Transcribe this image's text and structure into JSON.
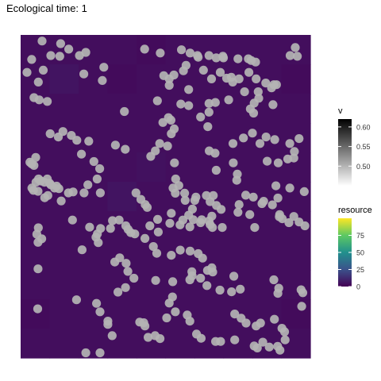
{
  "title": "Ecological time: 1",
  "chart_data": {
    "type": "scatter",
    "title": "Ecological time: 1",
    "xlabel": "",
    "ylabel": "",
    "xlim": [
      0,
      100
    ],
    "ylim": [
      0,
      100
    ],
    "grid": false,
    "background": {
      "name": "resource",
      "cols": 10,
      "rows": 11,
      "values": [
        [
          4,
          4,
          4,
          4,
          3,
          4,
          4,
          4,
          4,
          4
        ],
        [
          4,
          6,
          4,
          3,
          4,
          4,
          4,
          4,
          4,
          3
        ],
        [
          4,
          4,
          4,
          4,
          4,
          4,
          4,
          4,
          4,
          4
        ],
        [
          4,
          4,
          4,
          4,
          4,
          4,
          4,
          4,
          4,
          4
        ],
        [
          4,
          4,
          4,
          4,
          5,
          4,
          4,
          4,
          4,
          4
        ],
        [
          4,
          4,
          4,
          6,
          4,
          4,
          4,
          4,
          4,
          4
        ],
        [
          4,
          4,
          4,
          4,
          4,
          4,
          4,
          4,
          4,
          4
        ],
        [
          4,
          4,
          4,
          4,
          4,
          4,
          4,
          4,
          4,
          4
        ],
        [
          4,
          4,
          4,
          4,
          4,
          4,
          4,
          4,
          4,
          4
        ],
        [
          3,
          4,
          4,
          4,
          4,
          4,
          4,
          4,
          4,
          3
        ],
        [
          4,
          4,
          4,
          4,
          4,
          4,
          4,
          4,
          4,
          4
        ]
      ]
    },
    "points_color": "v",
    "points_color_value": 0.5,
    "points": [
      [
        7.4,
        98.1
      ],
      [
        13.8,
        97.3
      ],
      [
        16.6,
        95.6
      ],
      [
        20.3,
        93.6
      ],
      [
        22.5,
        94.6
      ],
      [
        10.4,
        93.6
      ],
      [
        13.5,
        93.4
      ],
      [
        3.8,
        92.4
      ],
      [
        7.8,
        89.1
      ],
      [
        2.2,
        88.4
      ],
      [
        21.8,
        87.9
      ],
      [
        28.7,
        90.0
      ],
      [
        42.8,
        95.6
      ],
      [
        55.5,
        95.4
      ],
      [
        48.2,
        94.4
      ],
      [
        58.5,
        94.4
      ],
      [
        61.0,
        93.6
      ],
      [
        61.3,
        93.1
      ],
      [
        65.0,
        93.6
      ],
      [
        67.5,
        92.9
      ],
      [
        70.0,
        92.9
      ],
      [
        69.8,
        93.4
      ],
      [
        75.0,
        92.6
      ],
      [
        79.6,
        92.1
      ],
      [
        78.6,
        92.6
      ],
      [
        81.1,
        91.6
      ],
      [
        93.0,
        93.6
      ],
      [
        95.5,
        93.4
      ],
      [
        94.8,
        96.1
      ],
      [
        57.1,
        90.6
      ],
      [
        56.2,
        88.9
      ],
      [
        52.9,
        87.6
      ],
      [
        49.4,
        87.4
      ],
      [
        51.3,
        86.4
      ],
      [
        63.1,
        89.1
      ],
      [
        68.9,
        88.4
      ],
      [
        72.7,
        86.9
      ],
      [
        71.1,
        86.6
      ],
      [
        78.8,
        88.4
      ],
      [
        81.3,
        86.4
      ],
      [
        84.6,
        85.1
      ],
      [
        87.4,
        84.6
      ],
      [
        88.3,
        84.6
      ],
      [
        86.6,
        83.6
      ],
      [
        6.1,
        85.4
      ],
      [
        28.2,
        85.9
      ],
      [
        51.3,
        84.4
      ],
      [
        58.0,
        83.1
      ],
      [
        65.9,
        86.4
      ],
      [
        75.4,
        86.4
      ],
      [
        73.2,
        85.4
      ],
      [
        77.3,
        82.4
      ],
      [
        82.0,
        82.4
      ],
      [
        6.4,
        79.9
      ],
      [
        9.2,
        79.4
      ],
      [
        4.6,
        80.6
      ],
      [
        35.8,
        76.3
      ],
      [
        47.2,
        79.6
      ],
      [
        55.3,
        78.6
      ],
      [
        58.0,
        78.1
      ],
      [
        65.0,
        78.8
      ],
      [
        67.2,
        79.1
      ],
      [
        71.8,
        79.9
      ],
      [
        80.6,
        78.9
      ],
      [
        82.2,
        80.4
      ],
      [
        87.1,
        78.4
      ],
      [
        79.3,
        77.1
      ],
      [
        80.4,
        75.8
      ],
      [
        65.0,
        76.1
      ],
      [
        62.1,
        74.6
      ],
      [
        64.6,
        71.6
      ],
      [
        51.0,
        74.4
      ],
      [
        49.1,
        72.9
      ],
      [
        51.9,
        73.6
      ],
      [
        53.0,
        70.9
      ],
      [
        52.0,
        69.4
      ],
      [
        10.2,
        69.4
      ],
      [
        13.0,
        68.4
      ],
      [
        17.5,
        68.9
      ],
      [
        14.6,
        70.1
      ],
      [
        19.4,
        67.4
      ],
      [
        23.5,
        67.1
      ],
      [
        32.7,
        65.9
      ],
      [
        36.1,
        64.6
      ],
      [
        48.0,
        66.4
      ],
      [
        50.7,
        65.6
      ],
      [
        46.5,
        64.1
      ],
      [
        44.9,
        62.4
      ],
      [
        53.1,
        60.4
      ],
      [
        65.1,
        64.1
      ],
      [
        67.1,
        63.4
      ],
      [
        73.3,
        66.4
      ],
      [
        76.9,
        68.1
      ],
      [
        80.0,
        69.6
      ],
      [
        84.7,
        68.4
      ],
      [
        82.6,
        66.4
      ],
      [
        87.7,
        67.6
      ],
      [
        92.9,
        66.4
      ],
      [
        96.1,
        67.9
      ],
      [
        94.5,
        63.9
      ],
      [
        85.1,
        60.9
      ],
      [
        88.9,
        60.4
      ],
      [
        92.2,
        61.6
      ],
      [
        94.3,
        61.9
      ],
      [
        73.4,
        60.4
      ],
      [
        74.8,
        56.9
      ],
      [
        67.5,
        58.1
      ],
      [
        52.6,
        52.6
      ],
      [
        5.2,
        62.1
      ],
      [
        3.2,
        60.6
      ],
      [
        21.0,
        63.1
      ],
      [
        25.3,
        60.8
      ],
      [
        27.3,
        58.6
      ],
      [
        26.4,
        55.4
      ],
      [
        3.8,
        60.1
      ],
      [
        4.6,
        59.6
      ],
      [
        5.3,
        54.4
      ],
      [
        6.2,
        55.4
      ],
      [
        7.0,
        54.8
      ],
      [
        8.2,
        54.4
      ],
      [
        9.2,
        55.4
      ],
      [
        10.0,
        54.1
      ],
      [
        10.4,
        53.6
      ],
      [
        11.7,
        52.6
      ],
      [
        12.4,
        53.2
      ],
      [
        3.9,
        52.6
      ],
      [
        4.4,
        51.9
      ],
      [
        6.0,
        51.6
      ],
      [
        16.5,
        51.1
      ],
      [
        18.1,
        51.4
      ],
      [
        13.2,
        52.4
      ],
      [
        14.0,
        48.6
      ],
      [
        8.3,
        49.6
      ],
      [
        9.4,
        50.3
      ],
      [
        23.2,
        53.6
      ],
      [
        21.9,
        51.1
      ],
      [
        27.5,
        51.1
      ],
      [
        39.8,
        51.1
      ],
      [
        41.5,
        49.1
      ],
      [
        43.0,
        47.5
      ],
      [
        43.7,
        46.6
      ],
      [
        53.5,
        55.4
      ],
      [
        54.6,
        53.4
      ],
      [
        53.4,
        51.0
      ],
      [
        56.6,
        51.0
      ],
      [
        56.8,
        48.8
      ],
      [
        59.3,
        46.1
      ],
      [
        60.1,
        48.8
      ],
      [
        60.5,
        49.8
      ],
      [
        64.1,
        50.3
      ],
      [
        66.5,
        50.3
      ],
      [
        65.4,
        48.4
      ],
      [
        67.6,
        47.2
      ],
      [
        69.2,
        46.0
      ],
      [
        74.6,
        55.0
      ],
      [
        88.1,
        53.3
      ],
      [
        88.8,
        49.5
      ],
      [
        92.9,
        52.6
      ],
      [
        97.9,
        51.5
      ],
      [
        77.7,
        50.4
      ],
      [
        80.3,
        49.8
      ],
      [
        83.3,
        47.8
      ],
      [
        83.9,
        48.5
      ],
      [
        75.4,
        47.5
      ],
      [
        75.0,
        45.1
      ],
      [
        79.1,
        44.4
      ],
      [
        86.9,
        47.4
      ],
      [
        89.3,
        43.7
      ],
      [
        89.4,
        44.4
      ],
      [
        90.3,
        43.1
      ],
      [
        92.6,
        41.9
      ],
      [
        94.3,
        43.8
      ],
      [
        96.1,
        42.1
      ],
      [
        98.1,
        40.9
      ],
      [
        80.8,
        40.4
      ],
      [
        6.1,
        40.3
      ],
      [
        5.6,
        38.3
      ],
      [
        7.3,
        36.9
      ],
      [
        6.0,
        35.8
      ],
      [
        17.9,
        42.7
      ],
      [
        23.8,
        40.5
      ],
      [
        31.7,
        42.5
      ],
      [
        31.0,
        40.1
      ],
      [
        26.8,
        35.7
      ],
      [
        34.0,
        42.7
      ],
      [
        36.3,
        40.9
      ],
      [
        37.1,
        39.8
      ],
      [
        38.0,
        38.8
      ],
      [
        39.4,
        38.4
      ],
      [
        44.6,
        40.9
      ],
      [
        47.5,
        39.0
      ],
      [
        47.3,
        42.9
      ],
      [
        56.0,
        42.7
      ],
      [
        58.0,
        44.2
      ],
      [
        59.6,
        42.8
      ],
      [
        62.5,
        42.8
      ],
      [
        66.0,
        43.9
      ],
      [
        69.6,
        40.4
      ],
      [
        51.5,
        41.7
      ],
      [
        52.0,
        44.8
      ],
      [
        55.0,
        41.2
      ],
      [
        58.4,
        40.6
      ],
      [
        62.1,
        41.9
      ],
      [
        65.0,
        42.4
      ],
      [
        65.4,
        41.3
      ],
      [
        66.2,
        40.4
      ],
      [
        42.9,
        37.0
      ],
      [
        34.2,
        31.0
      ],
      [
        36.4,
        29.3
      ],
      [
        45.8,
        34.5
      ],
      [
        47.0,
        32.4
      ],
      [
        52.0,
        31.8
      ],
      [
        55.1,
        33.4
      ],
      [
        58.5,
        33.1
      ],
      [
        61.3,
        32.3
      ],
      [
        62.8,
        30.9
      ],
      [
        64.5,
        27.1
      ],
      [
        66.0,
        27.9
      ],
      [
        66.3,
        26.6
      ],
      [
        73.6,
        25.3
      ],
      [
        37.0,
        26.8
      ],
      [
        36.2,
        21.8
      ],
      [
        39.1,
        24.7
      ],
      [
        46.6,
        24.0
      ],
      [
        52.5,
        23.6
      ],
      [
        58.4,
        24.2
      ],
      [
        59.2,
        25.4
      ],
      [
        59.1,
        26.7
      ],
      [
        62.1,
        24.7
      ],
      [
        64.3,
        22.4
      ],
      [
        68.8,
        21.0
      ],
      [
        72.8,
        20.5
      ],
      [
        75.8,
        21.3
      ],
      [
        87.4,
        24.2
      ],
      [
        89.1,
        21.6
      ],
      [
        88.8,
        20.0
      ],
      [
        96.8,
        21.1
      ],
      [
        97.4,
        20.2
      ],
      [
        97.0,
        16.0
      ],
      [
        26.2,
        16.9
      ],
      [
        27.4,
        14.3
      ],
      [
        30.1,
        11.4
      ],
      [
        30.1,
        10.4
      ],
      [
        41.1,
        11.1
      ],
      [
        42.5,
        10.9
      ],
      [
        42.9,
        9.9
      ],
      [
        50.4,
        12.4
      ],
      [
        53.4,
        14.3
      ],
      [
        57.5,
        13.3
      ],
      [
        58.4,
        11.4
      ],
      [
        60.7,
        7.4
      ],
      [
        62.3,
        6.1
      ],
      [
        73.9,
        13.6
      ],
      [
        76.1,
        12.3
      ],
      [
        77.8,
        10.8
      ],
      [
        81.3,
        9.9
      ],
      [
        82.8,
        10.8
      ],
      [
        87.6,
        12.0
      ],
      [
        90.2,
        9.2
      ],
      [
        91.1,
        8.1
      ],
      [
        91.3,
        5.6
      ],
      [
        31.6,
        6.9
      ],
      [
        44.0,
        6.4
      ],
      [
        46.4,
        6.9
      ],
      [
        48.1,
        6.0
      ],
      [
        67.3,
        5.1
      ],
      [
        69.0,
        5.1
      ],
      [
        73.9,
        5.6
      ],
      [
        80.6,
        3.7
      ],
      [
        81.7,
        3.1
      ],
      [
        83.6,
        4.9
      ],
      [
        85.8,
        3.4
      ],
      [
        88.7,
        3.6
      ],
      [
        89.5,
        2.4
      ],
      [
        22.5,
        1.6
      ],
      [
        27.4,
        1.6
      ],
      [
        5.9,
        15.2
      ],
      [
        33.6,
        20.4
      ],
      [
        51.3,
        17.0
      ],
      [
        52.4,
        18.9
      ],
      [
        19.3,
        18.0
      ],
      [
        6.0,
        27.6
      ],
      [
        21.2,
        33.5
      ],
      [
        32.5,
        29.7
      ],
      [
        26.0,
        37.4
      ],
      [
        26.5,
        38.4
      ],
      [
        27.6,
        40.1
      ]
    ],
    "legend_v": {
      "title": "v",
      "ticks": [
        "0.60",
        "0.55",
        "0.50"
      ],
      "min": 0.45,
      "max": 0.62,
      "tick_values": [
        0.6,
        0.55,
        0.5
      ],
      "colors": [
        "#000000",
        "#ffffff"
      ]
    },
    "legend_resource": {
      "title": "resource",
      "ticks": [
        "75",
        "50",
        "25",
        "0"
      ],
      "min": 0,
      "max": 100,
      "tick_values": [
        75,
        50,
        25,
        0
      ],
      "colors": [
        "#440154",
        "#3b528b",
        "#21908d",
        "#5dc963",
        "#fde725"
      ]
    },
    "legend_placement": "right"
  }
}
